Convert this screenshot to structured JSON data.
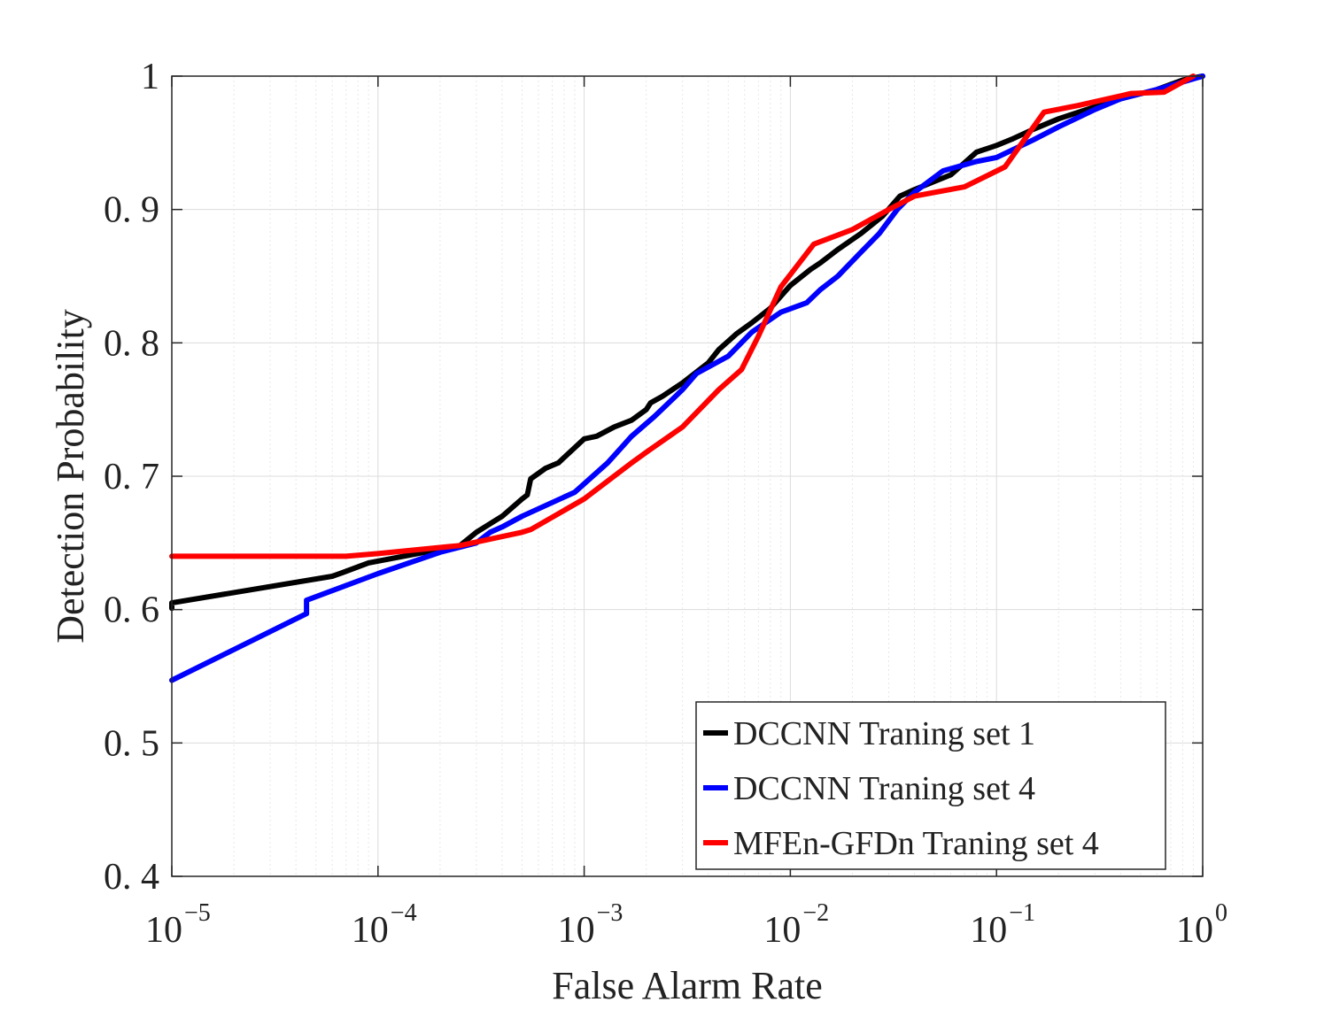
{
  "chart_data": {
    "type": "line",
    "xlabel": "False Alarm Rate",
    "ylabel": "Detection Probability",
    "xscale": "log",
    "xlim": [
      1e-05,
      1
    ],
    "ylim": [
      0.4,
      1
    ],
    "grid": true,
    "legend_position": "bottom-right",
    "x_ticks": [
      {
        "base": "10",
        "exp": "−5",
        "value": 1e-05
      },
      {
        "base": "10",
        "exp": "−4",
        "value": 0.0001
      },
      {
        "base": "10",
        "exp": "−3",
        "value": 0.001
      },
      {
        "base": "10",
        "exp": "−2",
        "value": 0.01
      },
      {
        "base": "10",
        "exp": "−1",
        "value": 0.1
      },
      {
        "base": "10",
        "exp": "0",
        "value": 1
      }
    ],
    "y_ticks": [
      {
        "label": "0. 4",
        "value": 0.4
      },
      {
        "label": "0. 5",
        "value": 0.5
      },
      {
        "label": "0. 6",
        "value": 0.6
      },
      {
        "label": "0. 7",
        "value": 0.7
      },
      {
        "label": "0. 8",
        "value": 0.8
      },
      {
        "label": "0. 9",
        "value": 0.9
      },
      {
        "label": "1",
        "value": 1.0
      }
    ],
    "series": [
      {
        "name": "DCCNN Traning set 1",
        "color": "#000000",
        "x": [
          1e-05,
          1e-05,
          6e-05,
          6.8e-05,
          9e-05,
          0.00025,
          0.0003,
          0.0004,
          0.0005,
          0.00053,
          0.00055,
          0.00065,
          0.00075,
          0.001,
          0.00115,
          0.0014,
          0.0017,
          0.002,
          0.0021,
          0.0024,
          0.003,
          0.004,
          0.0045,
          0.0055,
          0.0065,
          0.008,
          0.01,
          0.0125,
          0.014,
          0.017,
          0.022,
          0.028,
          0.034,
          0.04,
          0.05,
          0.06,
          0.07,
          0.08,
          0.1,
          0.12,
          0.15,
          0.2,
          0.3,
          0.4,
          0.6,
          0.8,
          1.0
        ],
        "y": [
          0.601,
          0.605,
          0.625,
          0.628,
          0.635,
          0.648,
          0.658,
          0.67,
          0.683,
          0.686,
          0.698,
          0.706,
          0.71,
          0.728,
          0.73,
          0.737,
          0.742,
          0.75,
          0.755,
          0.76,
          0.77,
          0.785,
          0.795,
          0.807,
          0.815,
          0.826,
          0.843,
          0.855,
          0.86,
          0.87,
          0.882,
          0.895,
          0.91,
          0.915,
          0.921,
          0.926,
          0.935,
          0.943,
          0.948,
          0.953,
          0.96,
          0.968,
          0.977,
          0.983,
          0.99,
          0.997,
          1.0
        ]
      },
      {
        "name": "DCCNN Traning set 4",
        "color": "#0000ff",
        "x": [
          1e-05,
          4.5e-05,
          4.5e-05,
          0.0001,
          0.0002,
          0.0003,
          0.00035,
          0.0004,
          0.0005,
          0.0009,
          0.0013,
          0.0017,
          0.0022,
          0.003,
          0.0035,
          0.005,
          0.0065,
          0.009,
          0.012,
          0.014,
          0.017,
          0.022,
          0.027,
          0.033,
          0.04,
          0.055,
          0.08,
          0.1,
          0.15,
          0.2,
          0.3,
          0.4,
          0.6,
          1.0
        ],
        "y": [
          0.547,
          0.597,
          0.607,
          0.627,
          0.643,
          0.65,
          0.658,
          0.662,
          0.67,
          0.688,
          0.71,
          0.73,
          0.745,
          0.765,
          0.777,
          0.79,
          0.808,
          0.823,
          0.83,
          0.84,
          0.85,
          0.868,
          0.882,
          0.9,
          0.913,
          0.929,
          0.936,
          0.939,
          0.952,
          0.962,
          0.975,
          0.983,
          0.99,
          1.0
        ]
      },
      {
        "name": "MFEn-GFDn Traning set 4",
        "color": "#ff0000",
        "x": [
          1e-05,
          7e-05,
          0.0001,
          0.00025,
          0.0005,
          0.00055,
          0.001,
          0.0017,
          0.002,
          0.003,
          0.0045,
          0.0058,
          0.007,
          0.009,
          0.013,
          0.02,
          0.03,
          0.04,
          0.07,
          0.11,
          0.17,
          0.25,
          0.45,
          0.65,
          0.9
        ],
        "y": [
          0.64,
          0.64,
          0.642,
          0.648,
          0.658,
          0.66,
          0.683,
          0.71,
          0.718,
          0.737,
          0.765,
          0.78,
          0.805,
          0.842,
          0.874,
          0.885,
          0.9,
          0.91,
          0.917,
          0.932,
          0.973,
          0.978,
          0.987,
          0.988,
          1.0
        ]
      }
    ]
  }
}
